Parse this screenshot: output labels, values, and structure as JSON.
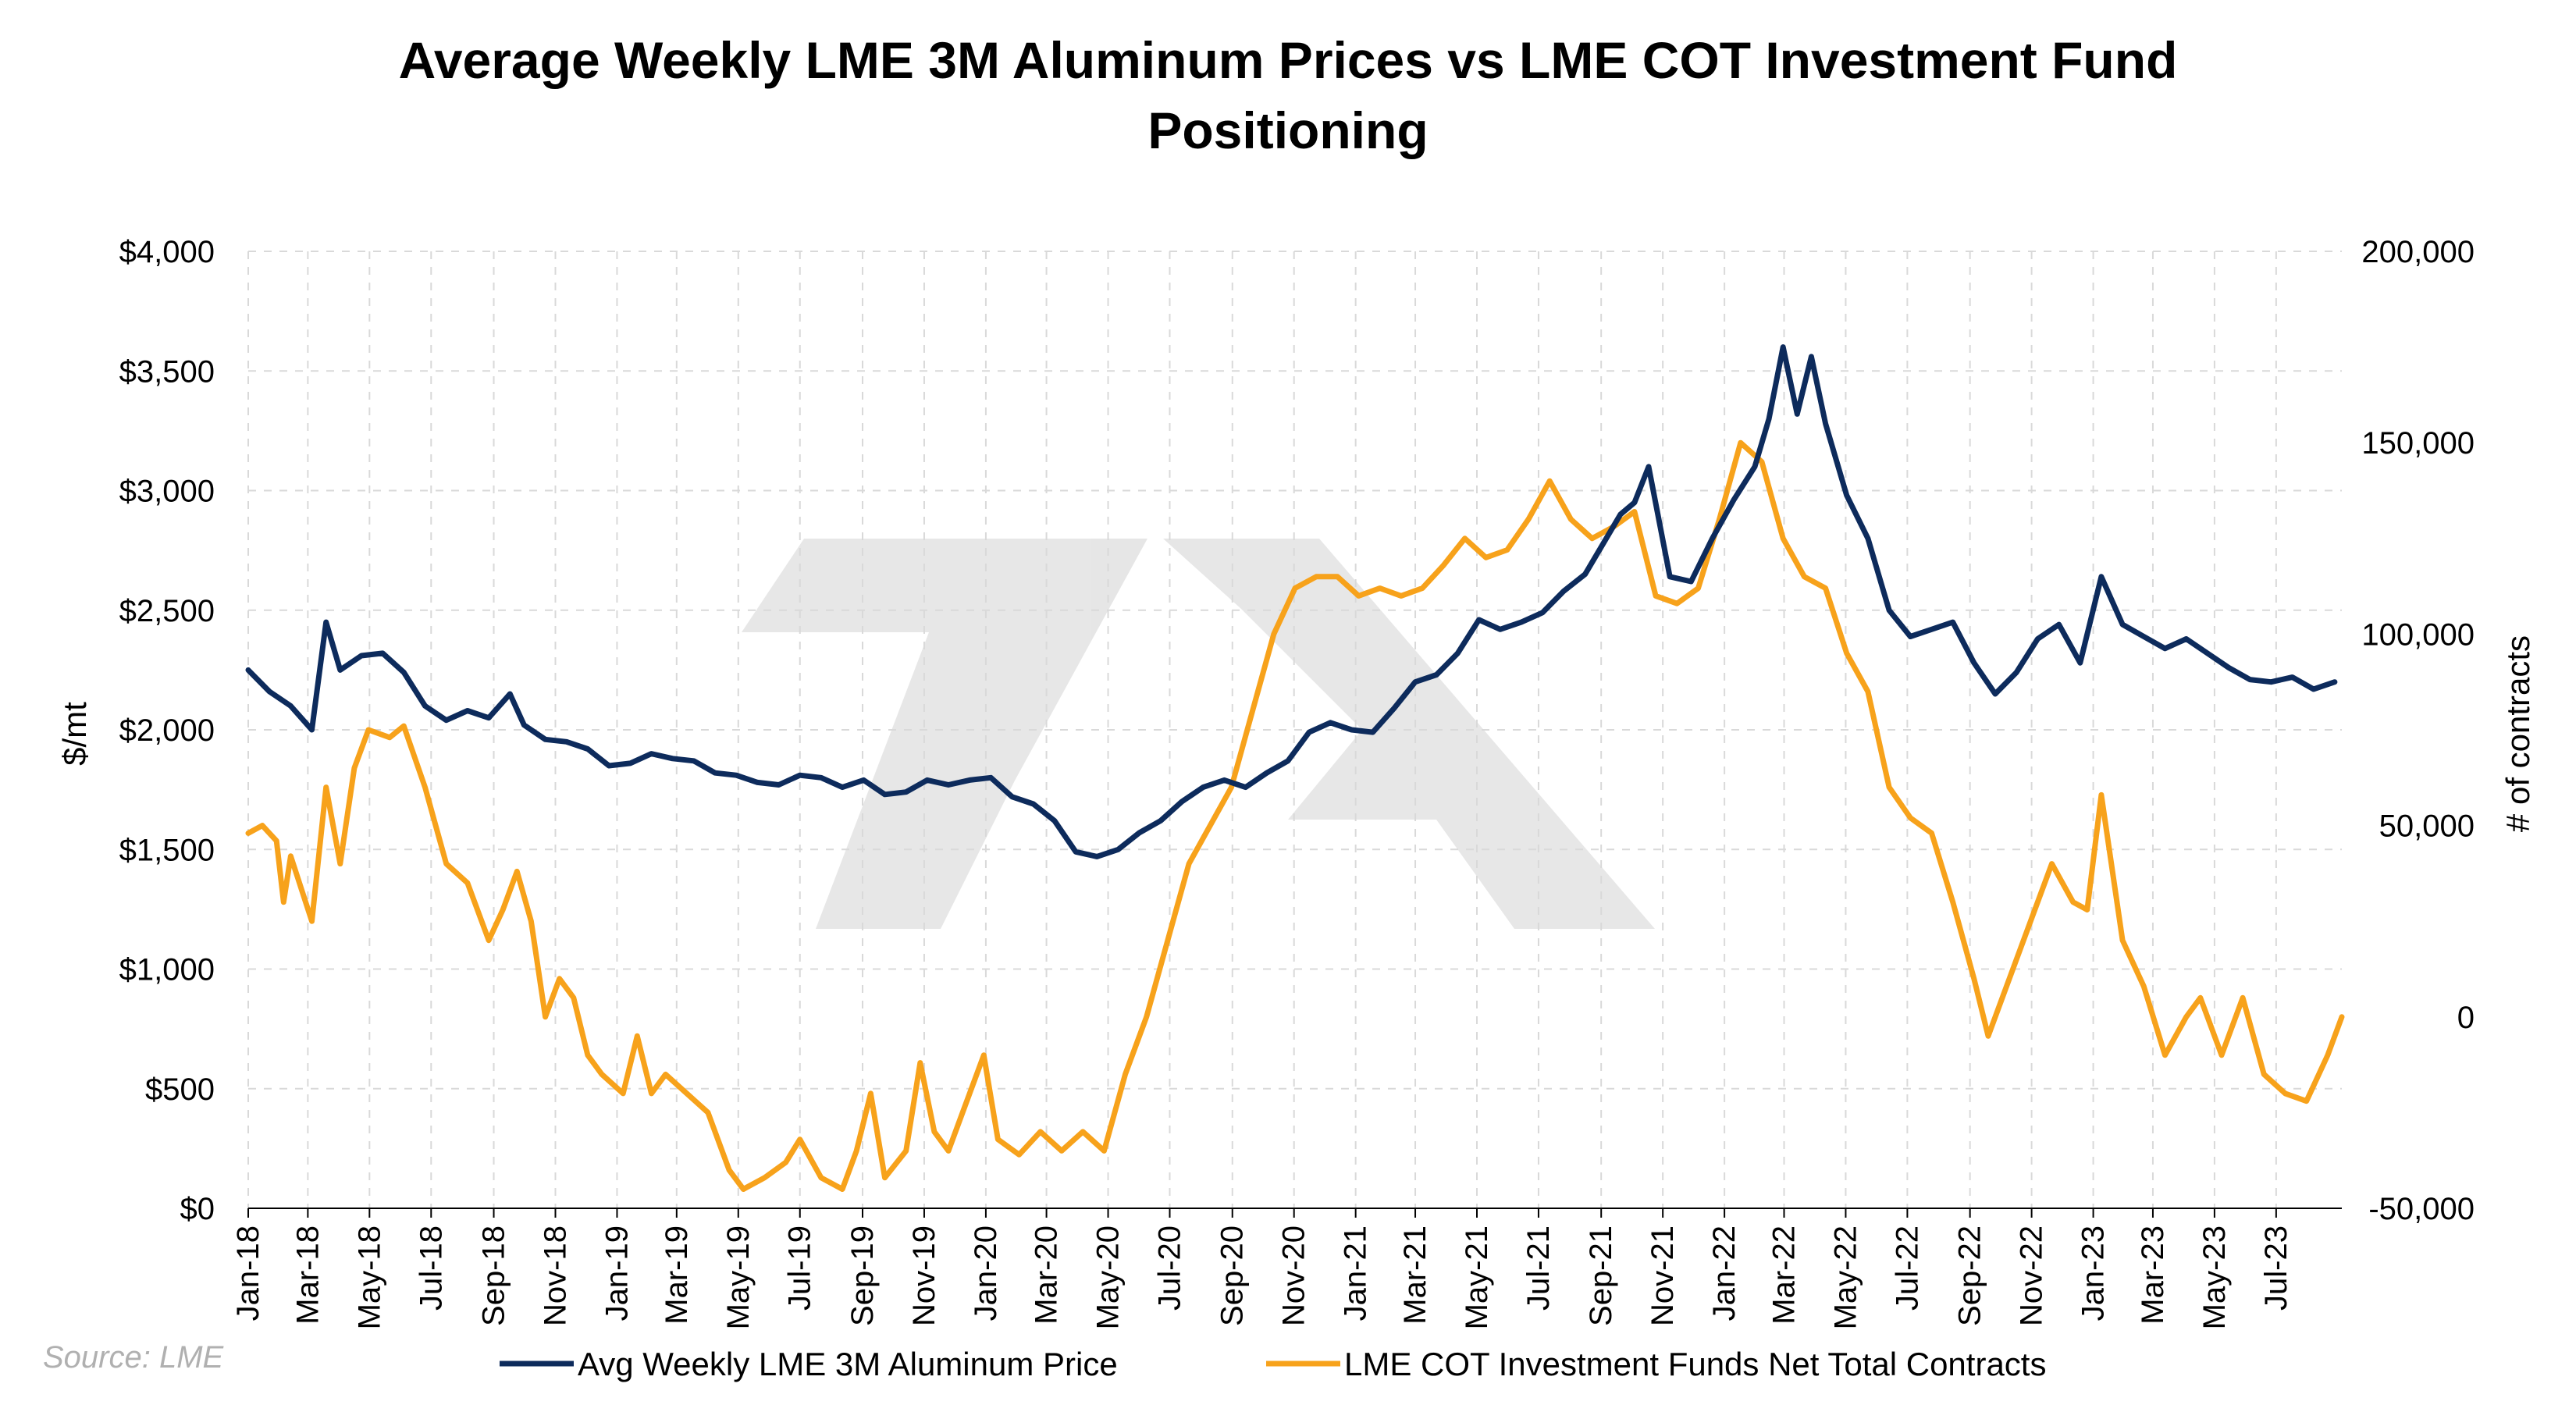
{
  "chart_data": {
    "type": "line",
    "title_line1": "Average Weekly LME 3M Aluminum Prices vs LME COT Investment Fund",
    "title_line2": "Positioning",
    "ylabel_left": "$/mt",
    "ylabel_right": "# of contracts",
    "ylim_left": [
      0,
      4000
    ],
    "ylim_right": [
      -50000,
      200000
    ],
    "yticks_left": [
      "$0",
      "$500",
      "$1,000",
      "$1,500",
      "$2,000",
      "$2,500",
      "$3,000",
      "$3,500",
      "$4,000"
    ],
    "yticks_right": [
      "-50,000",
      "0",
      "50,000",
      "100,000",
      "150,000",
      "200,000"
    ],
    "xticks": [
      "Jan-18",
      "Mar-18",
      "May-18",
      "Jul-18",
      "Sep-18",
      "Nov-18",
      "Jan-19",
      "Mar-19",
      "May-19",
      "Jul-19",
      "Sep-19",
      "Nov-19",
      "Jan-20",
      "Mar-20",
      "May-20",
      "Jul-20",
      "Sep-20",
      "Nov-20",
      "Jan-21",
      "Mar-21",
      "May-21",
      "Jul-21",
      "Sep-21",
      "Nov-21",
      "Jan-22",
      "Mar-22",
      "May-22",
      "Jul-22",
      "Sep-22",
      "Nov-22",
      "Jan-23",
      "Mar-23",
      "May-23",
      "Jul-23"
    ],
    "grid": true,
    "legend_position": "bottom",
    "source": "Source: LME",
    "series": [
      {
        "name": "Avg Weekly LME 3M Aluminum Price",
        "axis": "left",
        "color": "#0d2b5c",
        "points": [
          [
            "2018-01-01",
            2250
          ],
          [
            "2018-01-22",
            2160
          ],
          [
            "2018-02-12",
            2100
          ],
          [
            "2018-03-05",
            2000
          ],
          [
            "2018-03-19",
            2450
          ],
          [
            "2018-04-02",
            2250
          ],
          [
            "2018-04-23",
            2310
          ],
          [
            "2018-05-14",
            2320
          ],
          [
            "2018-06-04",
            2240
          ],
          [
            "2018-06-25",
            2100
          ],
          [
            "2018-07-16",
            2040
          ],
          [
            "2018-08-06",
            2080
          ],
          [
            "2018-08-27",
            2050
          ],
          [
            "2018-09-17",
            2150
          ],
          [
            "2018-10-01",
            2020
          ],
          [
            "2018-10-22",
            1960
          ],
          [
            "2018-11-12",
            1950
          ],
          [
            "2018-12-03",
            1920
          ],
          [
            "2018-12-24",
            1850
          ],
          [
            "2019-01-14",
            1860
          ],
          [
            "2019-02-04",
            1900
          ],
          [
            "2019-02-25",
            1880
          ],
          [
            "2019-03-18",
            1870
          ],
          [
            "2019-04-08",
            1820
          ],
          [
            "2019-04-29",
            1810
          ],
          [
            "2019-05-20",
            1780
          ],
          [
            "2019-06-10",
            1770
          ],
          [
            "2019-07-01",
            1810
          ],
          [
            "2019-07-22",
            1800
          ],
          [
            "2019-08-12",
            1760
          ],
          [
            "2019-09-02",
            1790
          ],
          [
            "2019-09-23",
            1730
          ],
          [
            "2019-10-14",
            1740
          ],
          [
            "2019-11-04",
            1790
          ],
          [
            "2019-11-25",
            1770
          ],
          [
            "2019-12-16",
            1790
          ],
          [
            "2020-01-06",
            1800
          ],
          [
            "2020-01-27",
            1720
          ],
          [
            "2020-02-17",
            1690
          ],
          [
            "2020-03-09",
            1620
          ],
          [
            "2020-03-30",
            1490
          ],
          [
            "2020-04-20",
            1470
          ],
          [
            "2020-05-11",
            1500
          ],
          [
            "2020-06-01",
            1570
          ],
          [
            "2020-06-22",
            1620
          ],
          [
            "2020-07-13",
            1700
          ],
          [
            "2020-08-03",
            1760
          ],
          [
            "2020-08-24",
            1790
          ],
          [
            "2020-09-14",
            1760
          ],
          [
            "2020-10-05",
            1820
          ],
          [
            "2020-10-26",
            1870
          ],
          [
            "2020-11-16",
            1990
          ],
          [
            "2020-12-07",
            2030
          ],
          [
            "2020-12-28",
            2000
          ],
          [
            "2021-01-18",
            1990
          ],
          [
            "2021-02-08",
            2090
          ],
          [
            "2021-03-01",
            2200
          ],
          [
            "2021-03-22",
            2230
          ],
          [
            "2021-04-12",
            2320
          ],
          [
            "2021-05-03",
            2460
          ],
          [
            "2021-05-24",
            2420
          ],
          [
            "2021-06-14",
            2450
          ],
          [
            "2021-07-05",
            2490
          ],
          [
            "2021-07-26",
            2580
          ],
          [
            "2021-08-16",
            2650
          ],
          [
            "2021-09-06",
            2800
          ],
          [
            "2021-09-20",
            2900
          ],
          [
            "2021-10-04",
            2950
          ],
          [
            "2021-10-18",
            3100
          ],
          [
            "2021-11-08",
            2640
          ],
          [
            "2021-11-29",
            2620
          ],
          [
            "2021-12-20",
            2800
          ],
          [
            "2022-01-10",
            2960
          ],
          [
            "2022-01-31",
            3100
          ],
          [
            "2022-02-14",
            3300
          ],
          [
            "2022-02-28",
            3600
          ],
          [
            "2022-03-14",
            3320
          ],
          [
            "2022-03-28",
            3560
          ],
          [
            "2022-04-11",
            3280
          ],
          [
            "2022-05-02",
            2980
          ],
          [
            "2022-05-23",
            2800
          ],
          [
            "2022-06-13",
            2500
          ],
          [
            "2022-07-04",
            2390
          ],
          [
            "2022-07-25",
            2420
          ],
          [
            "2022-08-15",
            2450
          ],
          [
            "2022-09-05",
            2280
          ],
          [
            "2022-09-26",
            2150
          ],
          [
            "2022-10-17",
            2240
          ],
          [
            "2022-11-07",
            2380
          ],
          [
            "2022-11-28",
            2440
          ],
          [
            "2022-12-19",
            2280
          ],
          [
            "2023-01-09",
            2640
          ],
          [
            "2023-01-30",
            2440
          ],
          [
            "2023-02-20",
            2390
          ],
          [
            "2023-03-13",
            2340
          ],
          [
            "2023-04-03",
            2380
          ],
          [
            "2023-04-24",
            2320
          ],
          [
            "2023-05-15",
            2260
          ],
          [
            "2023-06-05",
            2210
          ],
          [
            "2023-06-26",
            2200
          ],
          [
            "2023-07-17",
            2220
          ],
          [
            "2023-08-07",
            2170
          ],
          [
            "2023-08-28",
            2200
          ]
        ]
      },
      {
        "name": "LME COT Investment Funds Net Total Contracts",
        "axis": "right",
        "color": "#f7a21b",
        "points": [
          [
            "2018-01-01",
            48000
          ],
          [
            "2018-01-15",
            50000
          ],
          [
            "2018-01-29",
            46000
          ],
          [
            "2018-02-05",
            30000
          ],
          [
            "2018-02-12",
            42000
          ],
          [
            "2018-03-05",
            25000
          ],
          [
            "2018-03-19",
            60000
          ],
          [
            "2018-04-02",
            40000
          ],
          [
            "2018-04-16",
            65000
          ],
          [
            "2018-04-30",
            75000
          ],
          [
            "2018-05-21",
            73000
          ],
          [
            "2018-06-04",
            76000
          ],
          [
            "2018-06-25",
            60000
          ],
          [
            "2018-07-16",
            40000
          ],
          [
            "2018-08-06",
            35000
          ],
          [
            "2018-08-27",
            20000
          ],
          [
            "2018-09-10",
            28000
          ],
          [
            "2018-09-24",
            38000
          ],
          [
            "2018-10-08",
            25000
          ],
          [
            "2018-10-22",
            0
          ],
          [
            "2018-11-05",
            10000
          ],
          [
            "2018-11-19",
            5000
          ],
          [
            "2018-12-03",
            -10000
          ],
          [
            "2018-12-17",
            -15000
          ],
          [
            "2019-01-07",
            -20000
          ],
          [
            "2019-01-21",
            -5000
          ],
          [
            "2019-02-04",
            -20000
          ],
          [
            "2019-02-18",
            -15000
          ],
          [
            "2019-03-11",
            -20000
          ],
          [
            "2019-04-01",
            -25000
          ],
          [
            "2019-04-22",
            -40000
          ],
          [
            "2019-05-06",
            -45000
          ],
          [
            "2019-05-27",
            -42000
          ],
          [
            "2019-06-17",
            -38000
          ],
          [
            "2019-07-01",
            -32000
          ],
          [
            "2019-07-22",
            -42000
          ],
          [
            "2019-08-12",
            -45000
          ],
          [
            "2019-08-26",
            -35000
          ],
          [
            "2019-09-09",
            -20000
          ],
          [
            "2019-09-23",
            -42000
          ],
          [
            "2019-10-14",
            -35000
          ],
          [
            "2019-10-28",
            -12000
          ],
          [
            "2019-11-11",
            -30000
          ],
          [
            "2019-11-25",
            -35000
          ],
          [
            "2019-12-09",
            -25000
          ],
          [
            "2019-12-30",
            -10000
          ],
          [
            "2020-01-13",
            -32000
          ],
          [
            "2020-02-03",
            -36000
          ],
          [
            "2020-02-24",
            -30000
          ],
          [
            "2020-03-16",
            -35000
          ],
          [
            "2020-04-06",
            -30000
          ],
          [
            "2020-04-27",
            -35000
          ],
          [
            "2020-05-18",
            -15000
          ],
          [
            "2020-06-08",
            0
          ],
          [
            "2020-06-29",
            20000
          ],
          [
            "2020-07-20",
            40000
          ],
          [
            "2020-08-10",
            50000
          ],
          [
            "2020-08-31",
            60000
          ],
          [
            "2020-09-21",
            80000
          ],
          [
            "2020-10-12",
            100000
          ],
          [
            "2020-11-02",
            112000
          ],
          [
            "2020-11-23",
            115000
          ],
          [
            "2020-12-14",
            115000
          ],
          [
            "2021-01-04",
            110000
          ],
          [
            "2021-01-25",
            112000
          ],
          [
            "2021-02-15",
            110000
          ],
          [
            "2021-03-08",
            112000
          ],
          [
            "2021-03-29",
            118000
          ],
          [
            "2021-04-19",
            125000
          ],
          [
            "2021-05-10",
            120000
          ],
          [
            "2021-05-31",
            122000
          ],
          [
            "2021-06-21",
            130000
          ],
          [
            "2021-07-12",
            140000
          ],
          [
            "2021-08-02",
            130000
          ],
          [
            "2021-08-23",
            125000
          ],
          [
            "2021-09-13",
            128000
          ],
          [
            "2021-10-04",
            132000
          ],
          [
            "2021-10-25",
            110000
          ],
          [
            "2021-11-15",
            108000
          ],
          [
            "2021-12-06",
            112000
          ],
          [
            "2021-12-27",
            130000
          ],
          [
            "2022-01-17",
            150000
          ],
          [
            "2022-02-07",
            145000
          ],
          [
            "2022-02-28",
            125000
          ],
          [
            "2022-03-21",
            115000
          ],
          [
            "2022-04-11",
            112000
          ],
          [
            "2022-05-02",
            95000
          ],
          [
            "2022-05-23",
            85000
          ],
          [
            "2022-06-13",
            60000
          ],
          [
            "2022-07-04",
            52000
          ],
          [
            "2022-07-25",
            48000
          ],
          [
            "2022-08-15",
            30000
          ],
          [
            "2022-09-05",
            10000
          ],
          [
            "2022-09-19",
            -5000
          ],
          [
            "2022-10-10",
            10000
          ],
          [
            "2022-10-31",
            25000
          ],
          [
            "2022-11-21",
            40000
          ],
          [
            "2022-12-12",
            30000
          ],
          [
            "2022-12-26",
            28000
          ],
          [
            "2023-01-09",
            58000
          ],
          [
            "2023-01-30",
            20000
          ],
          [
            "2023-02-20",
            8000
          ],
          [
            "2023-03-13",
            -10000
          ],
          [
            "2023-04-03",
            0
          ],
          [
            "2023-04-17",
            5000
          ],
          [
            "2023-05-08",
            -10000
          ],
          [
            "2023-05-29",
            5000
          ],
          [
            "2023-06-19",
            -15000
          ],
          [
            "2023-07-10",
            -20000
          ],
          [
            "2023-07-31",
            -22000
          ],
          [
            "2023-08-21",
            -10000
          ],
          [
            "2023-09-04",
            0
          ]
        ]
      }
    ]
  }
}
